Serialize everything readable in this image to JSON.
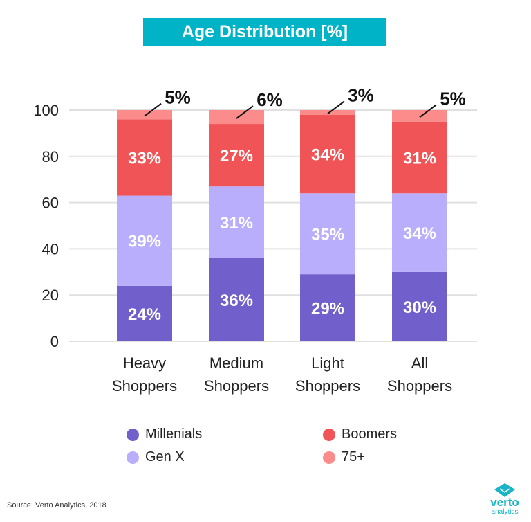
{
  "chart_data": {
    "type": "bar",
    "stacked": true,
    "title": "Age Distribution [%]",
    "categories": [
      "Heavy Shoppers",
      "Medium Shoppers",
      "Light Shoppers",
      "All Shoppers"
    ],
    "category_lines": [
      [
        "Heavy",
        "Shoppers"
      ],
      [
        "Medium",
        "Shoppers"
      ],
      [
        "Light",
        "Shoppers"
      ],
      [
        "All",
        "Shoppers"
      ]
    ],
    "series": [
      {
        "name": "Millenials",
        "values": [
          24,
          36,
          29,
          30
        ],
        "color": "#7160cc"
      },
      {
        "name": "Gen X",
        "values": [
          39,
          31,
          35,
          34
        ],
        "color": "#b9aefb"
      },
      {
        "name": "Boomers",
        "values": [
          33,
          27,
          34,
          31
        ],
        "color": "#f05457"
      },
      {
        "name": "75+",
        "values": [
          5,
          6,
          3,
          5
        ],
        "color": "#fc8c8b"
      }
    ],
    "ylim": [
      0,
      100
    ],
    "yticks": [
      0,
      20,
      40,
      60,
      80,
      100
    ],
    "grid": true,
    "legend_position": "bottom",
    "xlabel": "",
    "ylabel": ""
  },
  "source": "Source: Verto Analytics, 2018",
  "logo": {
    "line1": "verto",
    "line2": "analytics"
  },
  "title_bg": "#00b3c6"
}
